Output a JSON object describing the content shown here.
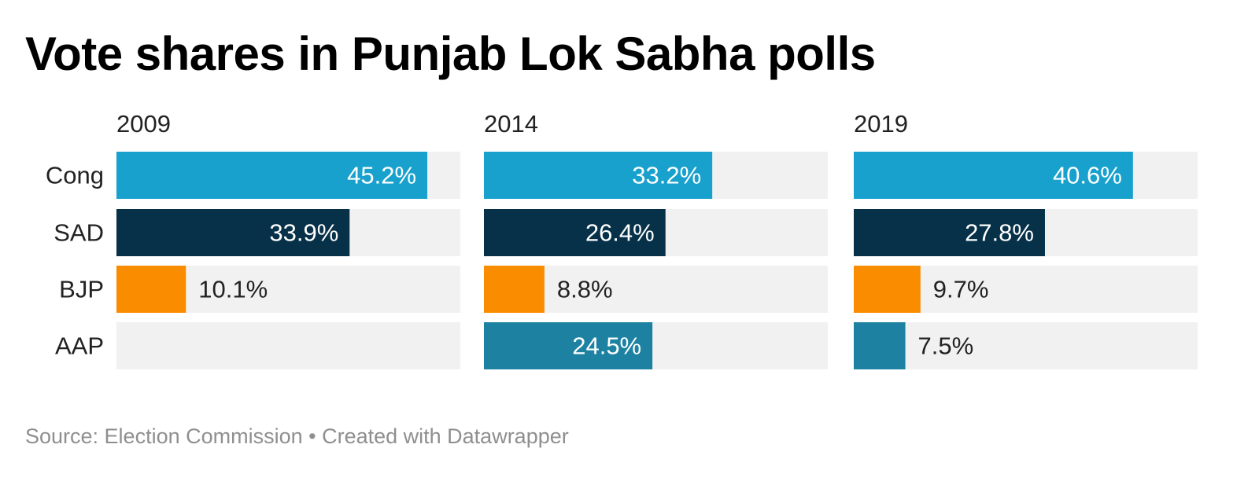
{
  "title": "Vote shares in Punjab Lok Sabha polls",
  "footer": "Source: Election Commission • Created with Datawrapper",
  "chart_data": {
    "type": "bar",
    "orientation": "horizontal",
    "layout": "small-multiples",
    "title": "Vote shares in Punjab Lok Sabha polls",
    "categories": [
      "Cong",
      "SAD",
      "BJP",
      "AAP"
    ],
    "category_colors": {
      "Cong": "#18a1cd",
      "SAD": "#063149",
      "BJP": "#fa8c00",
      "AAP": "#1d81a2"
    },
    "background_bar_color": "#f1f1f1",
    "xlim": [
      0,
      50
    ],
    "value_suffix": "%",
    "panels": [
      {
        "name": "2009",
        "values": [
          45.2,
          33.9,
          10.1,
          null
        ],
        "labels": [
          "45.2%",
          "33.9%",
          "10.1%",
          ""
        ]
      },
      {
        "name": "2014",
        "values": [
          33.2,
          26.4,
          8.8,
          24.5
        ],
        "labels": [
          "33.2%",
          "26.4%",
          "8.8%",
          "24.5%"
        ]
      },
      {
        "name": "2019",
        "values": [
          40.6,
          27.8,
          9.7,
          7.5
        ],
        "labels": [
          "40.6%",
          "27.8%",
          "9.7%",
          "7.5%"
        ]
      }
    ],
    "grid": false,
    "legend": "none"
  }
}
